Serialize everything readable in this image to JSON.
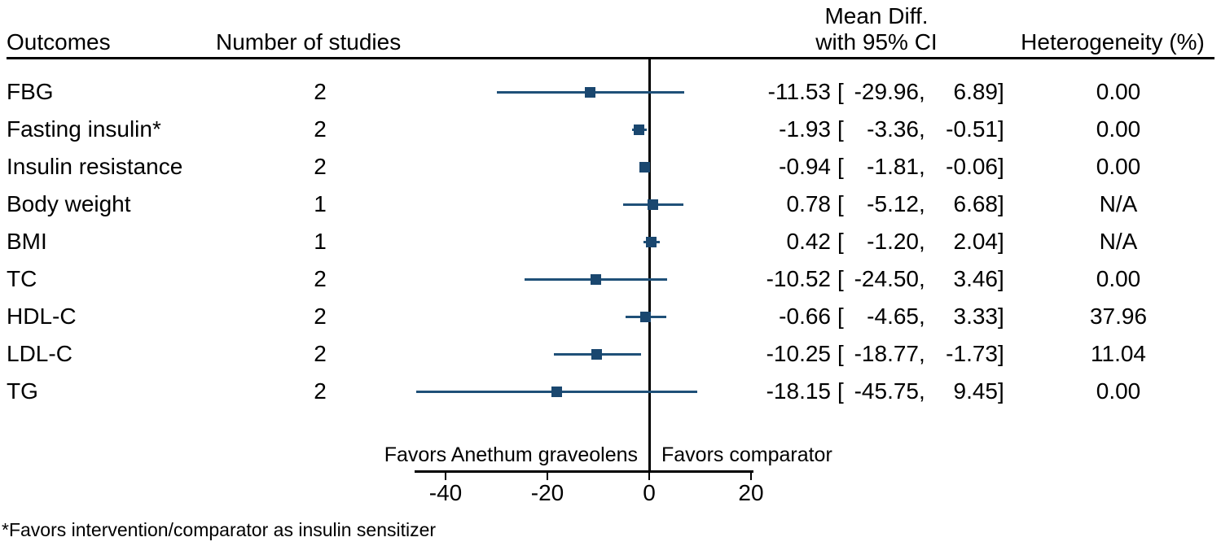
{
  "headers": {
    "outcomes": "Outcomes",
    "studies": "Number of studies",
    "mean_diff_line1": "Mean Diff.",
    "mean_diff_line2": "with 95% CI",
    "heterogeneity": "Heterogeneity (%)"
  },
  "format": {
    "open_bracket": "[",
    "comma": ",",
    "close_bracket": "]"
  },
  "chart_data": {
    "type": "forest",
    "columns": [
      "Outcomes",
      "Number of studies",
      "Mean Diff. with 95% CI",
      "Heterogeneity (%)"
    ],
    "x_axis": {
      "ticks": [
        -40,
        -20,
        0,
        20
      ],
      "range": [
        -46,
        20.5
      ],
      "zero_line": 0,
      "favors_left": "Favors Anethum graveolens",
      "favors_right": "Favors comparator"
    },
    "rows": [
      {
        "outcome": "FBG",
        "n_studies": "2",
        "mean": "-11.53",
        "ci_low": "-29.96",
        "ci_high": "6.89",
        "heterogeneity": "0.00"
      },
      {
        "outcome": "Fasting insulin*",
        "n_studies": "2",
        "mean": "-1.93",
        "ci_low": "-3.36",
        "ci_high": "-0.51",
        "heterogeneity": "0.00"
      },
      {
        "outcome": "Insulin resistance",
        "n_studies": "2",
        "mean": "-0.94",
        "ci_low": "-1.81",
        "ci_high": "-0.06",
        "heterogeneity": "0.00"
      },
      {
        "outcome": "Body weight",
        "n_studies": "1",
        "mean": "0.78",
        "ci_low": "-5.12",
        "ci_high": "6.68",
        "heterogeneity": "N/A"
      },
      {
        "outcome": "BMI",
        "n_studies": "1",
        "mean": "0.42",
        "ci_low": "-1.20",
        "ci_high": "2.04",
        "heterogeneity": "N/A"
      },
      {
        "outcome": "TC",
        "n_studies": "2",
        "mean": "-10.52",
        "ci_low": "-24.50",
        "ci_high": "3.46",
        "heterogeneity": "0.00"
      },
      {
        "outcome": "HDL-C",
        "n_studies": "2",
        "mean": "-0.66",
        "ci_low": "-4.65",
        "ci_high": "3.33",
        "heterogeneity": "37.96"
      },
      {
        "outcome": "LDL-C",
        "n_studies": "2",
        "mean": "-10.25",
        "ci_low": "-18.77",
        "ci_high": "-1.73",
        "heterogeneity": "11.04"
      },
      {
        "outcome": "TG",
        "n_studies": "2",
        "mean": "-18.15",
        "ci_low": "-45.75",
        "ci_high": "9.45",
        "heterogeneity": "0.00"
      }
    ]
  },
  "footnote": "*Favors intervention/comparator as insulin sensitizer",
  "colors": {
    "marker": "#1a476f",
    "ci_line": "#1f5078",
    "axis": "#000000",
    "text": "#000000"
  }
}
